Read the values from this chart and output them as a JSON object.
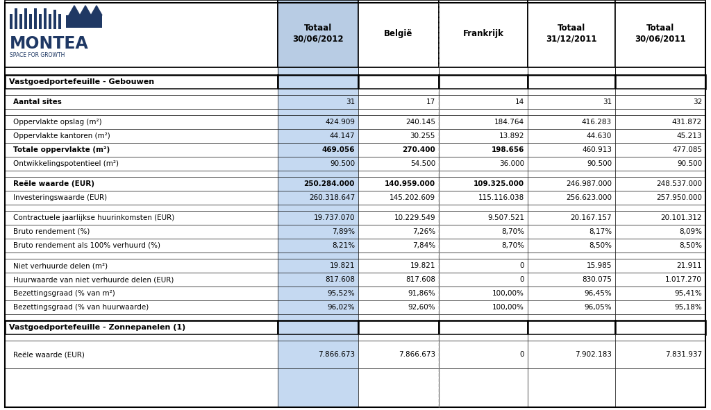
{
  "col_headers": [
    "Totaal\n30/06/2012",
    "België",
    "Frankrijk",
    "Totaal\n31/12/2011",
    "Totaal\n30/06/2011"
  ],
  "section1_label": "Vastgoedportefeuille - Gebouwen",
  "section2_label": "Vastgoedportefeuille - Zonnepanelen (1)",
  "rows": [
    {
      "label": "Aantal sites",
      "values": [
        "31",
        "17",
        "14",
        "31",
        "32"
      ],
      "bold_label": true,
      "bold_col1": false,
      "bold_col23": false,
      "spacer_before": true
    },
    {
      "label": "Oppervlakte opslag (m²)",
      "values": [
        "424.909",
        "240.145",
        "184.764",
        "416.283",
        "431.872"
      ],
      "bold_label": false,
      "bold_col1": false,
      "bold_col23": false,
      "spacer_before": true
    },
    {
      "label": "Oppervlakte kantoren (m²)",
      "values": [
        "44.147",
        "30.255",
        "13.892",
        "44.630",
        "45.213"
      ],
      "bold_label": false,
      "bold_col1": false,
      "bold_col23": false,
      "spacer_before": false
    },
    {
      "label": "Totale oppervlakte (m²)",
      "values": [
        "469.056",
        "270.400",
        "198.656",
        "460.913",
        "477.085"
      ],
      "bold_label": true,
      "bold_col1": true,
      "bold_col23": true,
      "spacer_before": false
    },
    {
      "label": "Ontwikkelingspotentieel (m²)",
      "values": [
        "90.500",
        "54.500",
        "36.000",
        "90.500",
        "90.500"
      ],
      "bold_label": false,
      "bold_col1": false,
      "bold_col23": false,
      "spacer_before": false
    },
    {
      "label": "Reële waarde (EUR)",
      "values": [
        "250.284.000",
        "140.959.000",
        "109.325.000",
        "246.987.000",
        "248.537.000"
      ],
      "bold_label": true,
      "bold_col1": true,
      "bold_col23": true,
      "spacer_before": true
    },
    {
      "label": "Investeringswaarde (EUR)",
      "values": [
        "260.318.647",
        "145.202.609",
        "115.116.038",
        "256.623.000",
        "257.950.000"
      ],
      "bold_label": false,
      "bold_col1": false,
      "bold_col23": false,
      "spacer_before": false
    },
    {
      "label": "Contractuele jaarlijkse huurinkomsten (EUR)",
      "values": [
        "19.737.070",
        "10.229.549",
        "9.507.521",
        "20.167.157",
        "20.101.312"
      ],
      "bold_label": false,
      "bold_col1": false,
      "bold_col23": false,
      "spacer_before": true
    },
    {
      "label": "Bruto rendement (%)",
      "values": [
        "7,89%",
        "7,26%",
        "8,70%",
        "8,17%",
        "8,09%"
      ],
      "bold_label": false,
      "bold_col1": false,
      "bold_col23": false,
      "spacer_before": false
    },
    {
      "label": "Bruto rendement als 100% verhuurd (%)",
      "values": [
        "8,21%",
        "7,84%",
        "8,70%",
        "8,50%",
        "8,50%"
      ],
      "bold_label": false,
      "bold_col1": false,
      "bold_col23": false,
      "spacer_before": false
    },
    {
      "label": "Niet verhuurde delen (m²)",
      "values": [
        "19.821",
        "19.821",
        "0",
        "15.985",
        "21.911"
      ],
      "bold_label": false,
      "bold_col1": false,
      "bold_col23": false,
      "spacer_before": true
    },
    {
      "label": "Huurwaarde van niet verhuurde delen (EUR)",
      "values": [
        "817.608",
        "817.608",
        "0",
        "830.075",
        "1.017.270"
      ],
      "bold_label": false,
      "bold_col1": false,
      "bold_col23": false,
      "spacer_before": false
    },
    {
      "label": "Bezettingsgraad (% van m²)",
      "values": [
        "95,52%",
        "91,86%",
        "100,00%",
        "96,45%",
        "95,41%"
      ],
      "bold_label": false,
      "bold_col1": false,
      "bold_col23": false,
      "spacer_before": false
    },
    {
      "label": "Bezettingsgraad (% van huurwaarde)",
      "values": [
        "96,02%",
        "92,60%",
        "100,00%",
        "96,05%",
        "95,18%"
      ],
      "bold_label": false,
      "bold_col1": false,
      "bold_col23": false,
      "spacer_before": false
    }
  ],
  "solar_rows": [
    {
      "label": "Reële waarde (EUR)",
      "values": [
        "7.866.673",
        "7.866.673",
        "0",
        "7.902.183",
        "7.831.937"
      ],
      "bold_label": false,
      "bold_col1": false,
      "bold_col23": false,
      "spacer_before": true
    }
  ],
  "header_bg": "#b8cce4",
  "col1_bg": "#c5d9f1",
  "border_color": "#000000",
  "dashed_col_color": "#777777",
  "logo_blue": "#1f3864",
  "logo_light_blue": "#4472c4"
}
